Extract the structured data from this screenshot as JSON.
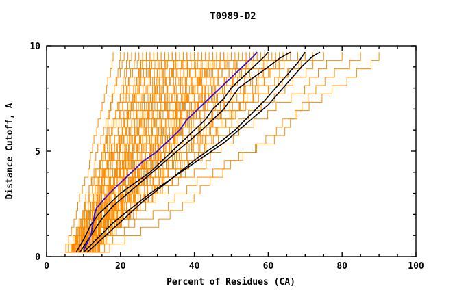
{
  "header": {
    "title": "T0989-D2"
  },
  "chart_data": {
    "type": "line",
    "title": "T0989-D2",
    "xlabel": "Percent of Residues (CA)",
    "ylabel": "Distance Cutoff, A",
    "xlim": [
      0,
      100
    ],
    "ylim": [
      0,
      10
    ],
    "x_major_ticks": [
      0,
      20,
      40,
      60,
      80,
      100
    ],
    "x_minor_step": 5,
    "y_major_ticks": [
      0,
      5,
      10
    ],
    "y_minor_step": 1,
    "grid": false,
    "legend": "none",
    "colors": {
      "ensemble": "#FF8C00",
      "reference": "#000000",
      "highlight": "#3A10C8",
      "frame": "#000000",
      "background": "#FFFFFF"
    },
    "ensemble": {
      "name": "predicted-models-orange",
      "count": 81,
      "y_start": 0.2,
      "y_end": 9.7,
      "start_x": [
        5,
        9.5,
        7,
        11,
        6,
        10,
        8,
        12,
        5.5,
        9,
        7.5,
        11.5,
        6.5,
        10.5,
        8.5,
        12.5,
        5.8,
        9.8,
        7.2,
        11.2,
        6.2,
        10.2,
        8.2,
        12.2,
        5.4,
        13,
        7.8
      ],
      "top_x": [
        18,
        20,
        21,
        22,
        23,
        24,
        25,
        26,
        26,
        27,
        27,
        28,
        28,
        29,
        29,
        30,
        30,
        31,
        31,
        32,
        32,
        33,
        33,
        34,
        34,
        35,
        35,
        36,
        36,
        37,
        37,
        38,
        38,
        39,
        39,
        40,
        40,
        41,
        41,
        42,
        42,
        43,
        43,
        44,
        45,
        45,
        46,
        46,
        47,
        47,
        48,
        48,
        49,
        50,
        50,
        51,
        52,
        52,
        53,
        54,
        54,
        55,
        56,
        56,
        57,
        58,
        59,
        60,
        61,
        62,
        63,
        64,
        65,
        66,
        68,
        70,
        72,
        75,
        80,
        85,
        90
      ]
    },
    "reference_series": [
      {
        "name": "reference-model-1",
        "points": [
          [
            8,
            0.2
          ],
          [
            10,
            0.8
          ],
          [
            12,
            1.5
          ],
          [
            14,
            2
          ],
          [
            17,
            2.5
          ],
          [
            20,
            3
          ],
          [
            24,
            3.5
          ],
          [
            28,
            4
          ],
          [
            31,
            4.5
          ],
          [
            34,
            5
          ],
          [
            37,
            5.5
          ],
          [
            40,
            6
          ],
          [
            43,
            6.5
          ],
          [
            45,
            7
          ],
          [
            48,
            7.5
          ],
          [
            50,
            8
          ],
          [
            53,
            8.5
          ],
          [
            56,
            9
          ],
          [
            59,
            9.5
          ],
          [
            60,
            9.7
          ]
        ]
      },
      {
        "name": "reference-model-2",
        "points": [
          [
            9,
            0.2
          ],
          [
            12,
            1
          ],
          [
            15,
            1.8
          ],
          [
            18,
            2.4
          ],
          [
            22,
            3
          ],
          [
            26,
            3.6
          ],
          [
            30,
            4.2
          ],
          [
            34,
            4.8
          ],
          [
            38,
            5.4
          ],
          [
            42,
            6
          ],
          [
            45,
            6.5
          ],
          [
            48,
            7
          ],
          [
            50,
            7.5
          ],
          [
            52,
            8
          ],
          [
            56,
            8.5
          ],
          [
            60,
            9
          ],
          [
            63,
            9.4
          ],
          [
            66,
            9.7
          ]
        ]
      },
      {
        "name": "reference-model-3",
        "points": [
          [
            10,
            0.2
          ],
          [
            14,
            0.9
          ],
          [
            18,
            1.6
          ],
          [
            23,
            2.3
          ],
          [
            28,
            3
          ],
          [
            33,
            3.6
          ],
          [
            38,
            4.2
          ],
          [
            43,
            4.8
          ],
          [
            48,
            5.4
          ],
          [
            52,
            6
          ],
          [
            56,
            6.6
          ],
          [
            60,
            7.2
          ],
          [
            63,
            7.8
          ],
          [
            66,
            8.4
          ],
          [
            69,
            9
          ],
          [
            72,
            9.5
          ],
          [
            74,
            9.7
          ]
        ]
      },
      {
        "name": "reference-model-4",
        "points": [
          [
            11,
            0.2
          ],
          [
            16,
            1
          ],
          [
            21,
            1.8
          ],
          [
            26,
            2.6
          ],
          [
            31,
            3.3
          ],
          [
            36,
            4
          ],
          [
            41,
            4.7
          ],
          [
            46,
            5.3
          ],
          [
            51,
            6
          ],
          [
            55,
            6.7
          ],
          [
            59,
            7.4
          ],
          [
            62,
            8
          ],
          [
            65,
            8.6
          ],
          [
            68,
            9.2
          ],
          [
            70,
            9.7
          ]
        ]
      }
    ],
    "highlight_series": {
      "name": "highlight-model-blue",
      "points": [
        [
          10,
          0.3
        ],
        [
          12,
          1
        ],
        [
          13,
          2
        ],
        [
          13.5,
          2.3
        ],
        [
          15,
          2.6
        ],
        [
          17,
          3
        ],
        [
          20,
          3.5
        ],
        [
          23,
          4
        ],
        [
          26,
          4.5
        ],
        [
          30,
          5
        ],
        [
          33,
          5.5
        ],
        [
          36,
          6
        ],
        [
          38,
          6.5
        ],
        [
          41,
          7
        ],
        [
          44,
          7.5
        ],
        [
          47,
          8
        ],
        [
          50,
          8.5
        ],
        [
          53,
          9
        ],
        [
          56,
          9.5
        ],
        [
          57,
          9.7
        ]
      ]
    }
  }
}
